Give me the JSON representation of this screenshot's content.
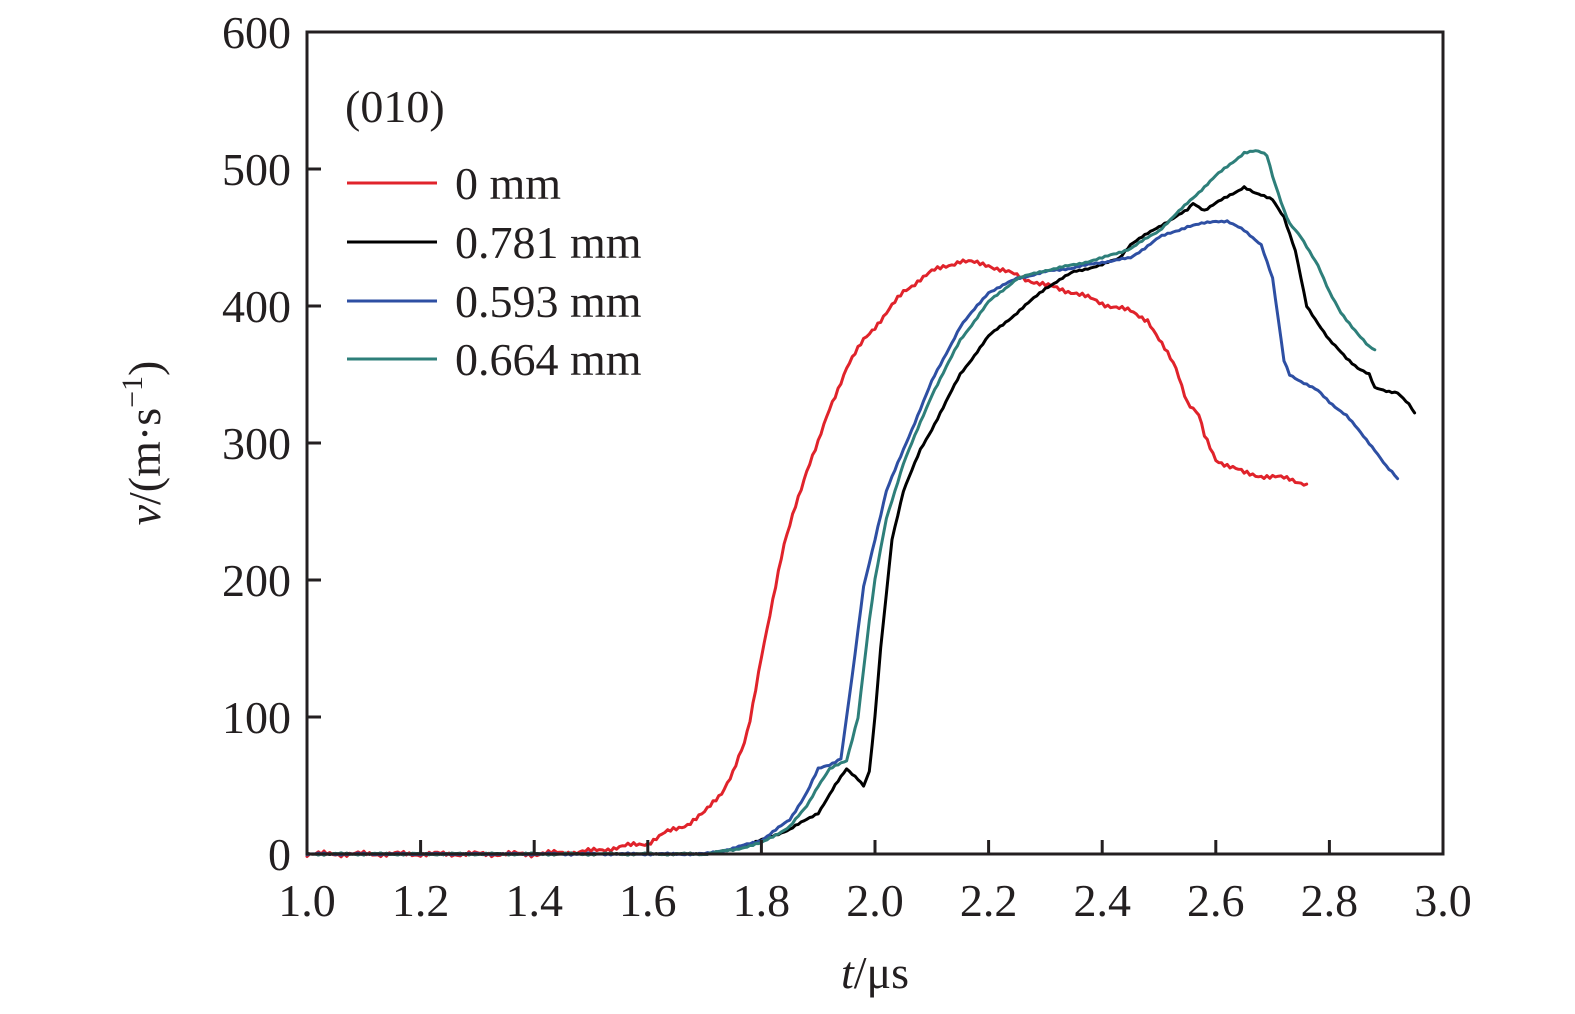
{
  "chart_data": {
    "type": "line",
    "title": "",
    "annotation": "(010)",
    "xlabel_italic": "t",
    "xlabel_unit": "/μs",
    "ylabel_italic": "v",
    "ylabel_unit": "/(m·s",
    "ylabel_sup": "−1",
    "ylabel_close": ")",
    "xlim": [
      1.0,
      3.0
    ],
    "ylim": [
      0,
      600
    ],
    "xticks": [
      1.0,
      1.2,
      1.4,
      1.6,
      1.8,
      2.0,
      2.2,
      2.4,
      2.6,
      2.8,
      3.0
    ],
    "xtick_labels": [
      "1.0",
      "1.2",
      "1.4",
      "1.6",
      "1.8",
      "2.0",
      "2.2",
      "2.4",
      "2.6",
      "2.8",
      "3.0"
    ],
    "yticks": [
      0,
      100,
      200,
      300,
      400,
      500,
      600
    ],
    "ytick_labels": [
      "0",
      "100",
      "200",
      "300",
      "400",
      "500",
      "600"
    ],
    "grid": false,
    "legend_position": "top-left",
    "series": [
      {
        "name": "0 mm",
        "color": "#e0232b",
        "x": [
          1.0,
          1.1,
          1.2,
          1.3,
          1.4,
          1.5,
          1.55,
          1.6,
          1.63,
          1.67,
          1.7,
          1.73,
          1.75,
          1.77,
          1.78,
          1.8,
          1.82,
          1.84,
          1.86,
          1.88,
          1.9,
          1.92,
          1.95,
          1.98,
          2.0,
          2.03,
          2.05,
          2.08,
          2.1,
          2.13,
          2.15,
          2.18,
          2.2,
          2.25,
          2.3,
          2.35,
          2.4,
          2.45,
          2.48,
          2.5,
          2.53,
          2.55,
          2.57,
          2.58,
          2.6,
          2.63,
          2.65,
          2.7,
          2.73,
          2.76
        ],
        "y": [
          0,
          0,
          0,
          0,
          0,
          2,
          5,
          8,
          15,
          22,
          30,
          45,
          60,
          80,
          97,
          145,
          185,
          225,
          255,
          280,
          300,
          325,
          355,
          375,
          385,
          400,
          410,
          420,
          425,
          430,
          433,
          431,
          430,
          422,
          415,
          410,
          402,
          396,
          390,
          375,
          355,
          330,
          320,
          305,
          288,
          282,
          278,
          275,
          274,
          270
        ]
      },
      {
        "name": "0.781 mm",
        "color": "#000000",
        "x": [
          1.0,
          1.2,
          1.4,
          1.6,
          1.7,
          1.75,
          1.8,
          1.85,
          1.9,
          1.93,
          1.95,
          1.97,
          1.98,
          1.99,
          2.0,
          2.01,
          2.03,
          2.05,
          2.08,
          2.1,
          2.15,
          2.2,
          2.25,
          2.3,
          2.35,
          2.4,
          2.43,
          2.45,
          2.5,
          2.55,
          2.56,
          2.58,
          2.6,
          2.63,
          2.65,
          2.67,
          2.7,
          2.72,
          2.74,
          2.76,
          2.8,
          2.83,
          2.85,
          2.87,
          2.88,
          2.9,
          2.92,
          2.94,
          2.95
        ],
        "y": [
          0,
          0,
          0,
          0,
          0,
          3,
          10,
          18,
          30,
          50,
          62,
          55,
          50,
          60,
          100,
          150,
          230,
          265,
          295,
          310,
          350,
          378,
          395,
          413,
          425,
          430,
          435,
          445,
          458,
          470,
          475,
          470,
          475,
          482,
          487,
          482,
          478,
          465,
          440,
          400,
          375,
          362,
          355,
          350,
          340,
          338,
          337,
          328,
          322
        ]
      },
      {
        "name": "0.593 mm",
        "color": "#2e4fa3",
        "x": [
          1.0,
          1.2,
          1.4,
          1.6,
          1.7,
          1.75,
          1.8,
          1.85,
          1.88,
          1.9,
          1.92,
          1.94,
          1.96,
          1.98,
          2.0,
          2.02,
          2.05,
          2.08,
          2.1,
          2.15,
          2.2,
          2.25,
          2.3,
          2.35,
          2.4,
          2.45,
          2.5,
          2.55,
          2.6,
          2.62,
          2.65,
          2.68,
          2.7,
          2.71,
          2.72,
          2.73,
          2.75,
          2.78,
          2.8,
          2.83,
          2.85,
          2.88,
          2.9,
          2.92
        ],
        "y": [
          0,
          0,
          0,
          0,
          0,
          4,
          10,
          25,
          45,
          62,
          65,
          70,
          130,
          195,
          230,
          265,
          295,
          325,
          345,
          385,
          410,
          420,
          425,
          428,
          432,
          435,
          450,
          458,
          462,
          462,
          455,
          445,
          420,
          390,
          360,
          350,
          345,
          338,
          330,
          320,
          310,
          295,
          283,
          274
        ]
      },
      {
        "name": "0.664 mm",
        "color": "#2e7f7a",
        "x": [
          1.0,
          1.2,
          1.4,
          1.6,
          1.7,
          1.75,
          1.8,
          1.85,
          1.88,
          1.9,
          1.92,
          1.95,
          1.97,
          1.99,
          2.0,
          2.02,
          2.05,
          2.08,
          2.1,
          2.15,
          2.2,
          2.25,
          2.3,
          2.35,
          2.4,
          2.45,
          2.5,
          2.55,
          2.6,
          2.63,
          2.65,
          2.67,
          2.68,
          2.69,
          2.7,
          2.72,
          2.73,
          2.75,
          2.78,
          2.8,
          2.82,
          2.85,
          2.87,
          2.88
        ],
        "y": [
          0,
          0,
          0,
          0,
          0,
          3,
          8,
          20,
          35,
          50,
          62,
          68,
          100,
          170,
          200,
          245,
          285,
          315,
          335,
          375,
          403,
          420,
          426,
          430,
          435,
          442,
          455,
          475,
          495,
          505,
          512,
          513,
          512,
          510,
          495,
          470,
          460,
          450,
          430,
          410,
          395,
          380,
          370,
          368
        ]
      }
    ]
  }
}
